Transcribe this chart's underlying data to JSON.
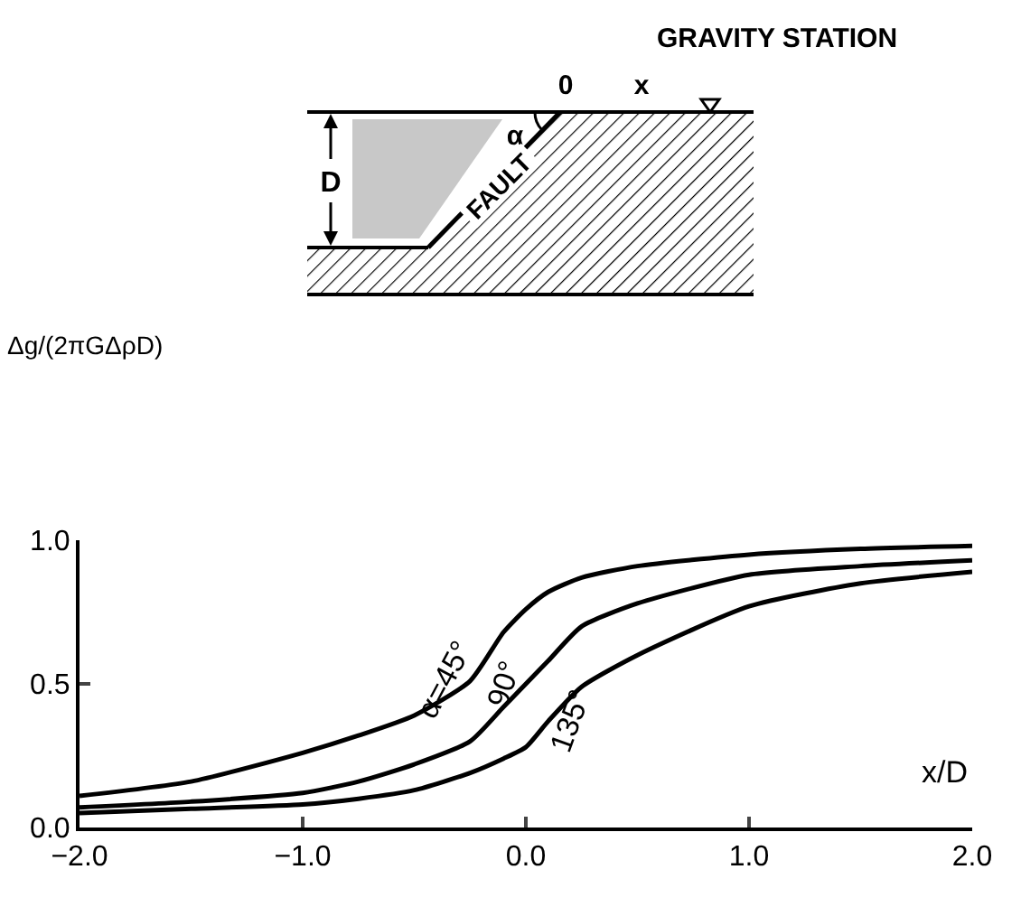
{
  "chart_data": {
    "type": "line",
    "xlabel": "x/D",
    "x": [
      -2,
      -1.5,
      -1,
      -0.75,
      -0.5,
      -0.25,
      -0.1,
      0,
      0.1,
      0.25,
      0.5,
      1,
      1.5,
      2
    ],
    "series": [
      {
        "name": "α=45°",
        "color": "#000000",
        "values": [
          0.11,
          0.16,
          0.26,
          0.32,
          0.39,
          0.51,
          0.68,
          0.76,
          0.82,
          0.87,
          0.91,
          0.95,
          0.97,
          0.98
        ]
      },
      {
        "name": "90°",
        "color": "#000000",
        "values": [
          0.07,
          0.09,
          0.12,
          0.16,
          0.22,
          0.3,
          0.42,
          0.5,
          0.58,
          0.7,
          0.78,
          0.88,
          0.91,
          0.93
        ]
      },
      {
        "name": "135°",
        "color": "#000000",
        "values": [
          0.05,
          0.065,
          0.08,
          0.1,
          0.13,
          0.19,
          0.24,
          0.28,
          0.37,
          0.49,
          0.6,
          0.77,
          0.85,
          0.89
        ]
      }
    ],
    "xlim": [
      -2,
      2
    ],
    "xticks": [
      {
        "value": -2,
        "label": "−2.0"
      },
      {
        "value": -1,
        "label": "−1.0"
      },
      {
        "value": 0,
        "label": "0.0"
      },
      {
        "value": 1,
        "label": "1.0"
      },
      {
        "value": 2,
        "label": "2.0"
      }
    ],
    "ylim": [
      0,
      1
    ],
    "yticks": [
      {
        "value": 0,
        "label": "0.0"
      },
      {
        "value": 0.5,
        "label": "0.5"
      },
      {
        "value": 1,
        "label": "1.0"
      }
    ],
    "grid": false,
    "legend": false,
    "marker": "none",
    "line_style": "solid",
    "annotations": [
      "GRAVITY STATION",
      "0",
      "x",
      "D",
      "α",
      "FAULT",
      "Δg/(2πGΔρD)"
    ]
  }
}
